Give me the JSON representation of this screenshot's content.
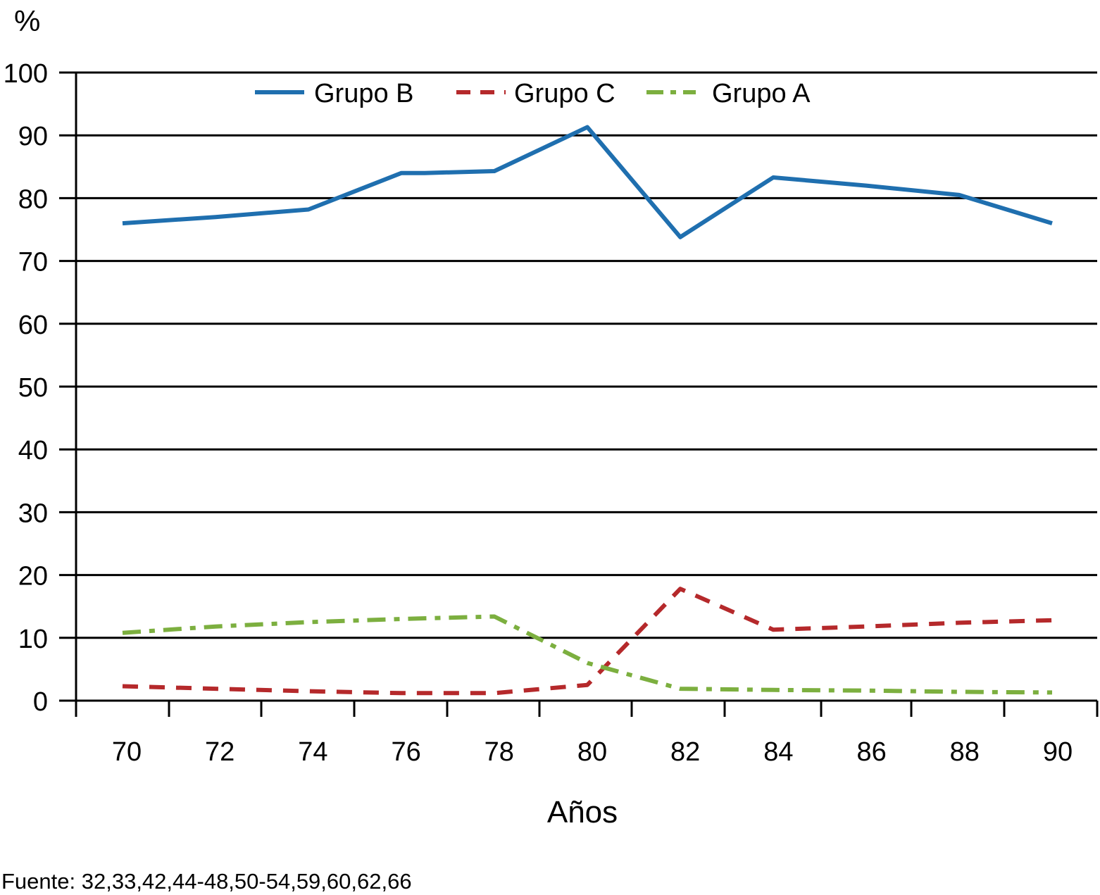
{
  "chart_data": {
    "type": "line",
    "title": "",
    "ylabel": "%",
    "xlabel": "Años",
    "ylim": [
      0,
      100
    ],
    "yticks": [
      0,
      10,
      20,
      30,
      40,
      50,
      60,
      70,
      80,
      90,
      100
    ],
    "xticklabels": [
      "70",
      "72",
      "74",
      "76",
      "78",
      "80",
      "82",
      "84",
      "86",
      "88",
      "90"
    ],
    "grid": true,
    "legend_position": "top",
    "series": [
      {
        "name": "Grupo B",
        "color": "#1f6faf",
        "style": "solid",
        "x": [
          70,
          72,
          74,
          76,
          76.5,
          78,
          80,
          82,
          84,
          86,
          88,
          90
        ],
        "y": [
          76,
          77,
          78.2,
          84,
          84,
          84.3,
          91.3,
          73.8,
          83.3,
          82,
          80.5,
          76
        ]
      },
      {
        "name": "Grupo C",
        "color": "#b5292b",
        "style": "dashed",
        "x": [
          70,
          72,
          74,
          76,
          78,
          80,
          82,
          84,
          86,
          88,
          90
        ],
        "y": [
          2.3,
          1.9,
          1.5,
          1.2,
          1.2,
          2.5,
          17.8,
          11.3,
          11.8,
          12.4,
          12.8
        ]
      },
      {
        "name": "Grupo A",
        "color": "#7caf3f",
        "style": "dashdot",
        "x": [
          70,
          72,
          74,
          76,
          78,
          80,
          82,
          84,
          86,
          88,
          90
        ],
        "y": [
          10.8,
          11.8,
          12.5,
          13,
          13.4,
          6,
          1.9,
          1.7,
          1.6,
          1.4,
          1.3
        ]
      }
    ],
    "footnote": "Fuente: 32,33,42,44-48,50-54,59,60,62,66"
  }
}
